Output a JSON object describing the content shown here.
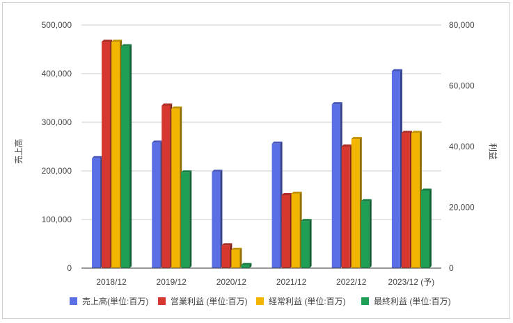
{
  "chart_data": {
    "type": "bar",
    "categories": [
      "2018/12",
      "2019/12",
      "2020/12",
      "2021/12",
      "2022/12",
      "2023/12 (予)"
    ],
    "left_axis": {
      "label": "売上高",
      "range": [
        0,
        500000
      ],
      "ticks": [
        "0",
        "100,000",
        "200,000",
        "300,000",
        "400,000",
        "500,000"
      ]
    },
    "right_axis": {
      "label": "利益",
      "range": [
        0,
        80000
      ],
      "ticks": [
        "0",
        "20,000",
        "40,000",
        "60,000",
        "80,000"
      ]
    },
    "series": [
      {
        "name": "売上高(単位:百万)",
        "axis": "left",
        "color": "#5a6ee6",
        "values": [
          226000,
          258000,
          198000,
          256000,
          337000,
          405000
        ]
      },
      {
        "name": "営業利益 (単位:百万)",
        "axis": "right",
        "color": "#d6382f",
        "values": [
          74500,
          53500,
          7500,
          24000,
          40000,
          44500
        ]
      },
      {
        "name": "経常利益 (単位:百万)",
        "axis": "right",
        "color": "#f2b600",
        "values": [
          74500,
          52500,
          6000,
          24500,
          42500,
          44500
        ]
      },
      {
        "name": "最終利益 (単位:百万)",
        "axis": "right",
        "color": "#1f9e55",
        "values": [
          73000,
          31500,
          1000,
          15500,
          22000,
          25500
        ]
      }
    ],
    "grid": true,
    "legend_position": "bottom"
  }
}
